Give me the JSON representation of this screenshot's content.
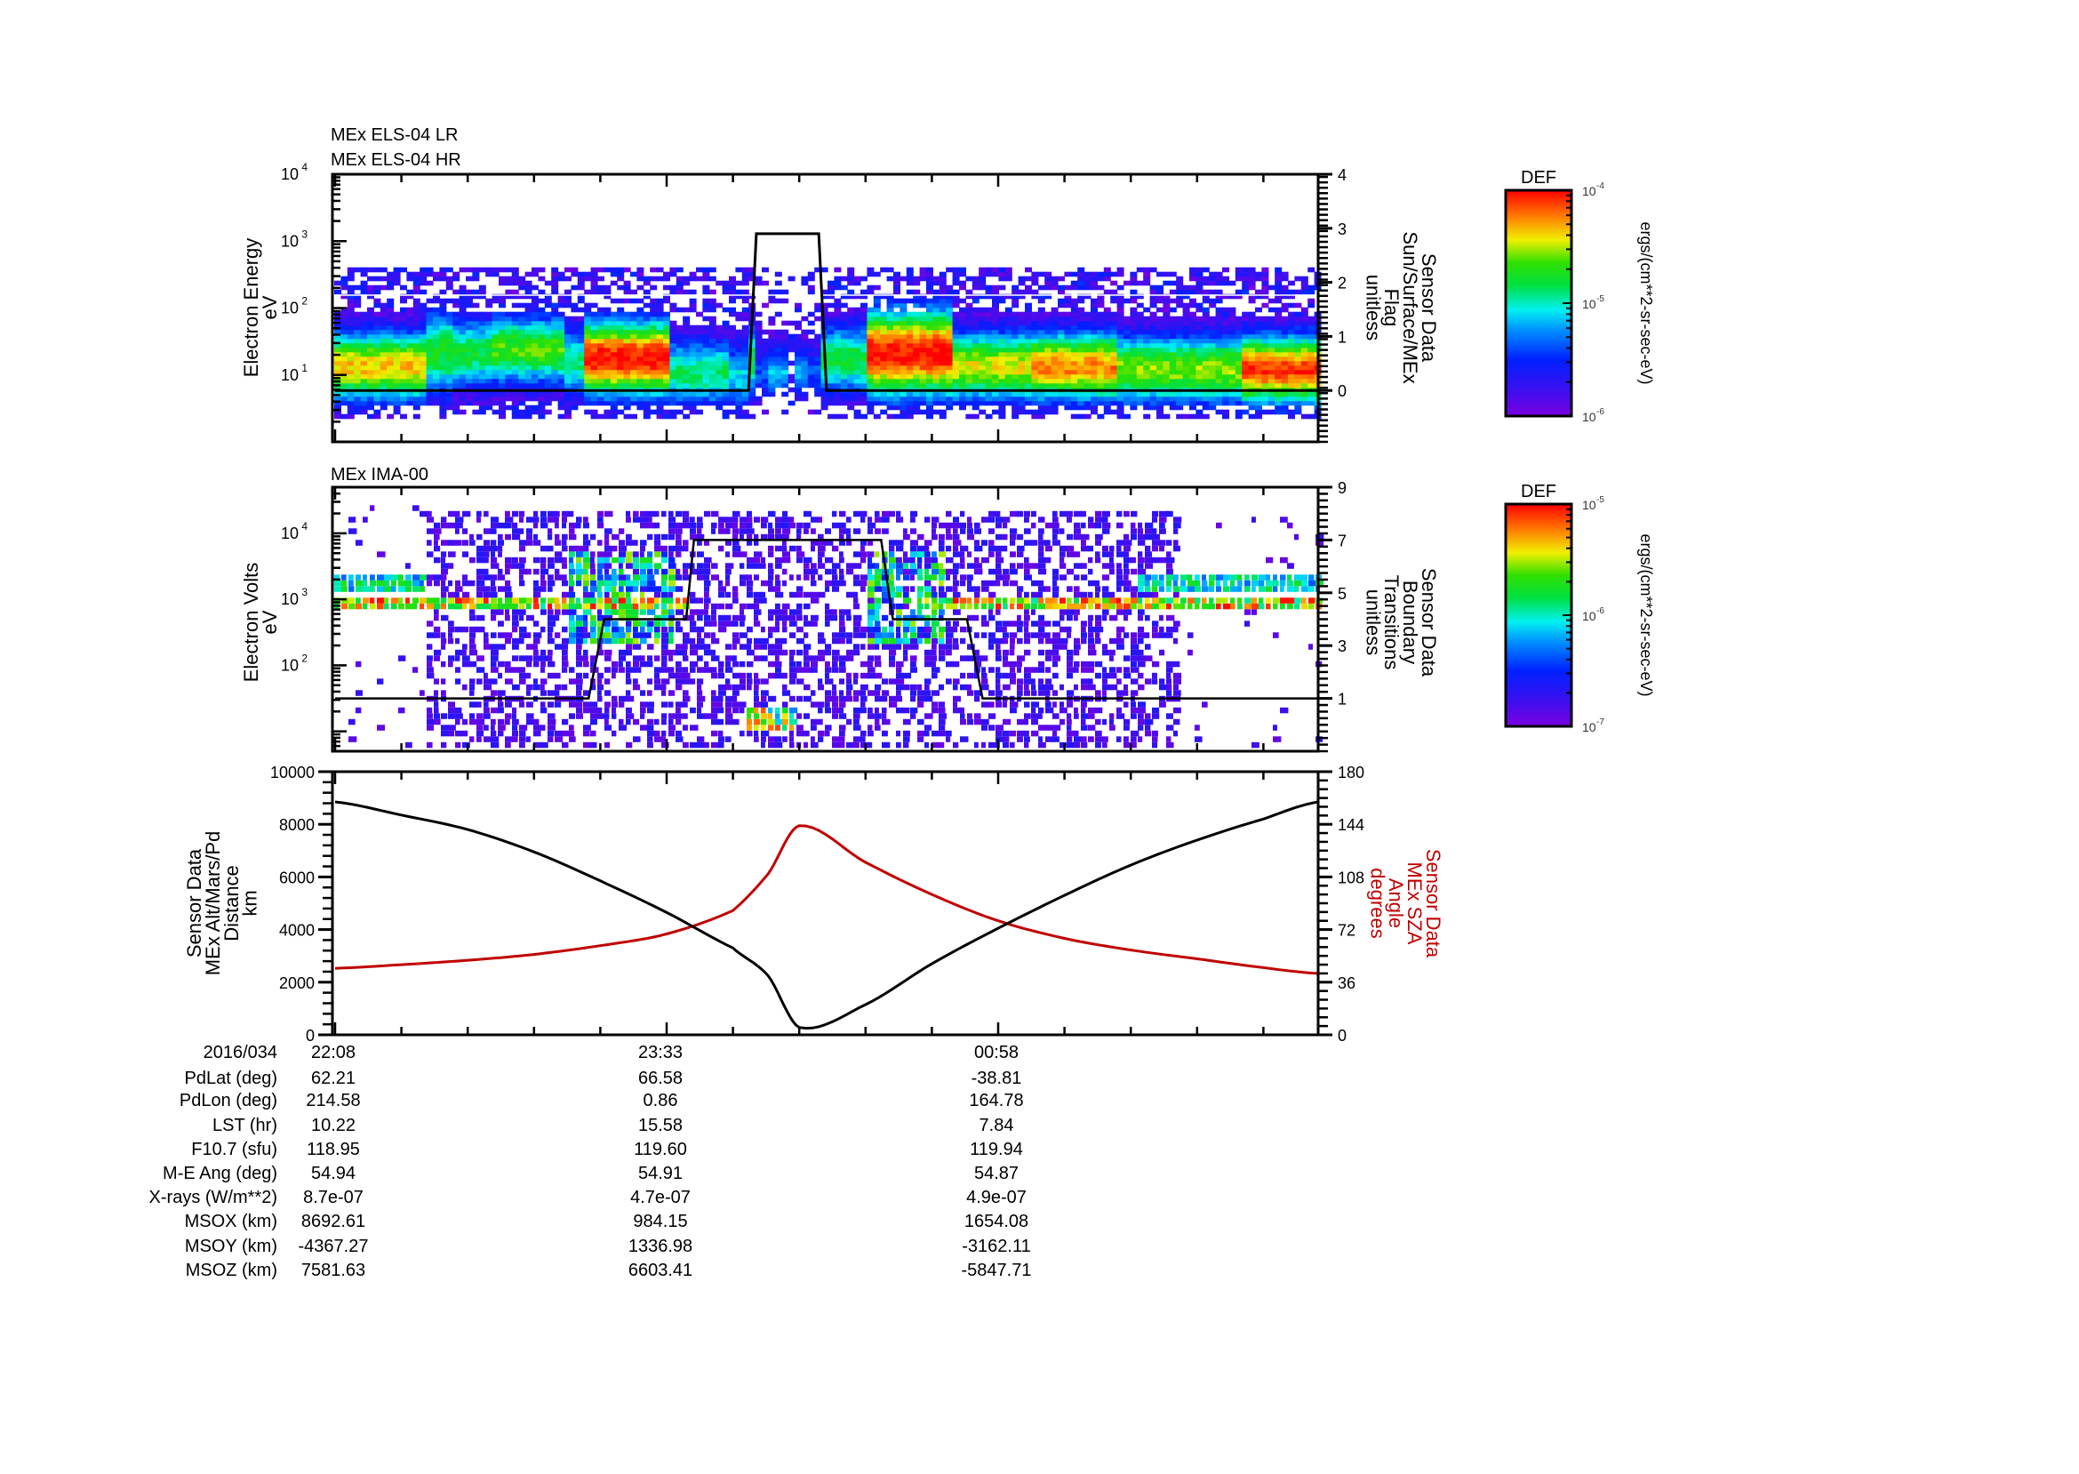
{
  "chart_data": [
    {
      "type": "heatmap",
      "panel": "panel-els",
      "titles": [
        "MEx ELS-04 LR",
        "MEx ELS-04 HR"
      ],
      "ylabel": [
        "Electron Energy",
        "eV"
      ],
      "yscale": "log",
      "ylim": [
        1,
        10000
      ],
      "yticks": [
        {
          "v": 1,
          "label": "10",
          "exp": "1"
        },
        {
          "v": 2,
          "label": "10",
          "exp": "2"
        },
        {
          "v": 3,
          "label": "10",
          "exp": "3"
        },
        {
          "v": 4,
          "label": "10",
          "exp": "4"
        }
      ],
      "y2label": [
        "Sensor Data",
        "Sun/Surface/MEx",
        "Flag",
        "unitless"
      ],
      "y2lim": [
        -0.95,
        4
      ],
      "y2ticks": [
        0,
        1,
        2,
        3,
        4
      ],
      "overlay_line": {
        "name": "Sun/Surface/MEx Flag",
        "points": [
          [
            "22:08",
            0
          ],
          [
            "23:54",
            0
          ],
          [
            "23:56",
            2.9
          ],
          [
            "00:12",
            2.9
          ],
          [
            "00:14",
            0
          ],
          [
            "02:20",
            0
          ]
        ]
      },
      "colorbar": {
        "title": "DEF",
        "units": "ergs/(cm**2-sr-sec-eV)",
        "min_exp": -6,
        "max_exp": -4,
        "ticks": [
          "10^-4",
          "10^-5",
          "10^-6"
        ]
      },
      "notes": "Electron spectrogram: broad band ~10–150 eV with intense (red) heating regions near 23:13–23:28 and 00:23–00:34; dropout in optical shadow 23:55–00:12"
    },
    {
      "type": "heatmap",
      "panel": "panel-ima",
      "titles": [
        "MEx IMA-00"
      ],
      "ylabel": [
        "Electron Volts",
        "eV"
      ],
      "yscale": "log",
      "ylim": [
        5,
        50000
      ],
      "yticks": [
        {
          "v": 2,
          "label": "10",
          "exp": "2"
        },
        {
          "v": 3,
          "label": "10",
          "exp": "3"
        },
        {
          "v": 4,
          "label": "10",
          "exp": "4"
        }
      ],
      "y2label": [
        "Sensor Data",
        "Boundary",
        "Transitions",
        "unitless"
      ],
      "y2lim": [
        -1,
        9
      ],
      "y2ticks": [
        1,
        3,
        5,
        7,
        9
      ],
      "overlay_line": {
        "name": "Boundary Transitions",
        "points": [
          [
            "22:08",
            1
          ],
          [
            "23:13",
            1
          ],
          [
            "23:17",
            4
          ],
          [
            "23:38",
            4
          ],
          [
            "23:40",
            7
          ],
          [
            "00:28",
            7
          ],
          [
            "00:31",
            4
          ],
          [
            "00:50",
            4
          ],
          [
            "00:54",
            1
          ],
          [
            "02:20",
            1
          ]
        ]
      },
      "colorbar": {
        "title": "DEF",
        "units": "ergs/(cm**2-sr-sec-eV)",
        "min_exp": -7,
        "max_exp": -5,
        "ticks": [
          "10^-5",
          "10^-6",
          "10^-7"
        ]
      },
      "notes": "Ion spectrogram: solar wind beams at ~800 eV and ~1.5 keV before 22:31 and after 01:27; broad noise 22:31–01:27; heavy ion burst near 00:00 at low energy"
    },
    {
      "type": "line",
      "panel": "panel-orbit",
      "x": [
        "22:08",
        "22:25",
        "22:42",
        "22:59",
        "23:16",
        "23:33",
        "23:50",
        "23:59",
        "00:07",
        "00:24",
        "00:41",
        "00:58",
        "01:15",
        "01:32",
        "01:49",
        "02:06",
        "02:20"
      ],
      "series": [
        {
          "name": "MEx Alt/Mars/Pd Distance (km)",
          "axis": "left",
          "color": "#000000",
          "values": [
            8850,
            8350,
            7800,
            6950,
            5850,
            4650,
            3300,
            2250,
            280,
            1150,
            2700,
            4050,
            5300,
            6450,
            7400,
            8200,
            8850
          ]
        },
        {
          "name": "MEx SZA Angle (degrees)",
          "axis": "right",
          "color": "#c00000",
          "values": [
            45.5,
            48,
            51,
            55,
            61,
            69,
            85,
            110,
            143,
            118,
            96,
            78,
            66,
            58,
            52,
            46,
            42
          ]
        }
      ],
      "ylabel": [
        "Sensor Data",
        "MEx Alt/Mars/Pd",
        "Distance",
        "km"
      ],
      "ylim": [
        0,
        10000
      ],
      "yticks": [
        0,
        2000,
        4000,
        6000,
        8000,
        10000
      ],
      "y2label": [
        "Sensor Data",
        "MEx SZA",
        "Angle",
        "degrees"
      ],
      "y2lim": [
        0,
        180
      ],
      "y2ticks": [
        0,
        36,
        72,
        108,
        144,
        180
      ],
      "xticks_major": [
        "22:08",
        "23:33",
        "00:58"
      ]
    }
  ],
  "annotation": {
    "header_label": "2016/034",
    "times": [
      "22:08",
      "23:33",
      "00:58"
    ],
    "rows": [
      {
        "label": "PdLat (deg)",
        "values": [
          "62.21",
          "66.58",
          "-38.81"
        ]
      },
      {
        "label": "PdLon (deg)",
        "values": [
          "214.58",
          "0.86",
          "164.78"
        ]
      },
      {
        "label": "LST (hr)",
        "values": [
          "10.22",
          "15.58",
          "7.84"
        ]
      },
      {
        "label": "F10.7 (sfu)",
        "values": [
          "118.95",
          "119.60",
          "119.94"
        ]
      },
      {
        "label": "M-E Ang (deg)",
        "values": [
          "54.94",
          "54.91",
          "54.87"
        ]
      },
      {
        "label": "X-rays (W/m**2)",
        "values": [
          "8.7e-07",
          "4.7e-07",
          "4.9e-07"
        ]
      },
      {
        "label": "MSOX (km)",
        "values": [
          "8692.61",
          "984.15",
          "1654.08"
        ]
      },
      {
        "label": "MSOY (km)",
        "values": [
          "-4367.27",
          "1336.98",
          "-3162.11"
        ]
      },
      {
        "label": "MSOZ (km)",
        "values": [
          "7581.63",
          "6603.41",
          "-5847.71"
        ]
      }
    ]
  },
  "colors": {
    "axis": "#000000",
    "sza_line": "#c00000",
    "alt_line": "#000000"
  }
}
